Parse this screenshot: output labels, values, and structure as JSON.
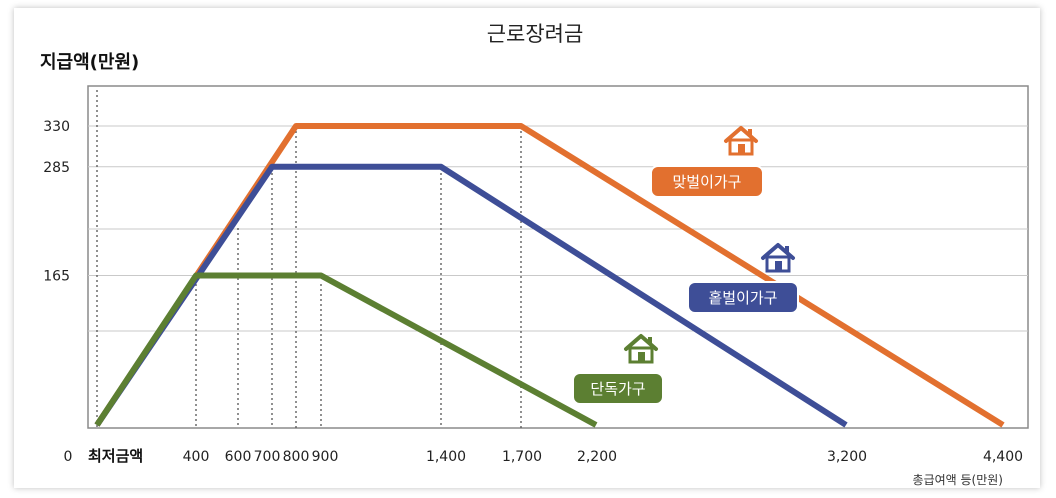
{
  "chart_data": {
    "type": "line",
    "title": "근로장려금",
    "ylabel": "지급액(만원)",
    "xlabel": "총급여액 등(만원)",
    "x_ticks": [
      "0",
      "최저금액",
      "400",
      "600",
      "700",
      "800",
      "900",
      "1,400",
      "1,700",
      "2,200",
      "3,200",
      "4,400"
    ],
    "y_ticks": [
      "330",
      "285",
      "165"
    ],
    "ylim": [
      0,
      380
    ],
    "series": [
      {
        "name": "맞벌이가구",
        "color": "#E2702F",
        "points": [
          [
            0,
            0
          ],
          [
            800,
            330
          ],
          [
            1700,
            330
          ],
          [
            4400,
            0
          ]
        ]
      },
      {
        "name": "홑벌이가구",
        "color": "#3E4E97",
        "points": [
          [
            0,
            0
          ],
          [
            700,
            285
          ],
          [
            1400,
            285
          ],
          [
            3200,
            0
          ]
        ]
      },
      {
        "name": "단독가구",
        "color": "#5C7F32",
        "points": [
          [
            0,
            0
          ],
          [
            400,
            165
          ],
          [
            900,
            165
          ],
          [
            2200,
            0
          ]
        ]
      }
    ],
    "dotted_guides_x": [
      "최저금액",
      "400",
      "600",
      "700",
      "800",
      "900",
      "1,400",
      "1,700"
    ],
    "grid": "horizontal"
  },
  "colors": {
    "frame": "#8a8a8a",
    "grid": "#c9c9c9",
    "house_icon": "house-icon"
  }
}
